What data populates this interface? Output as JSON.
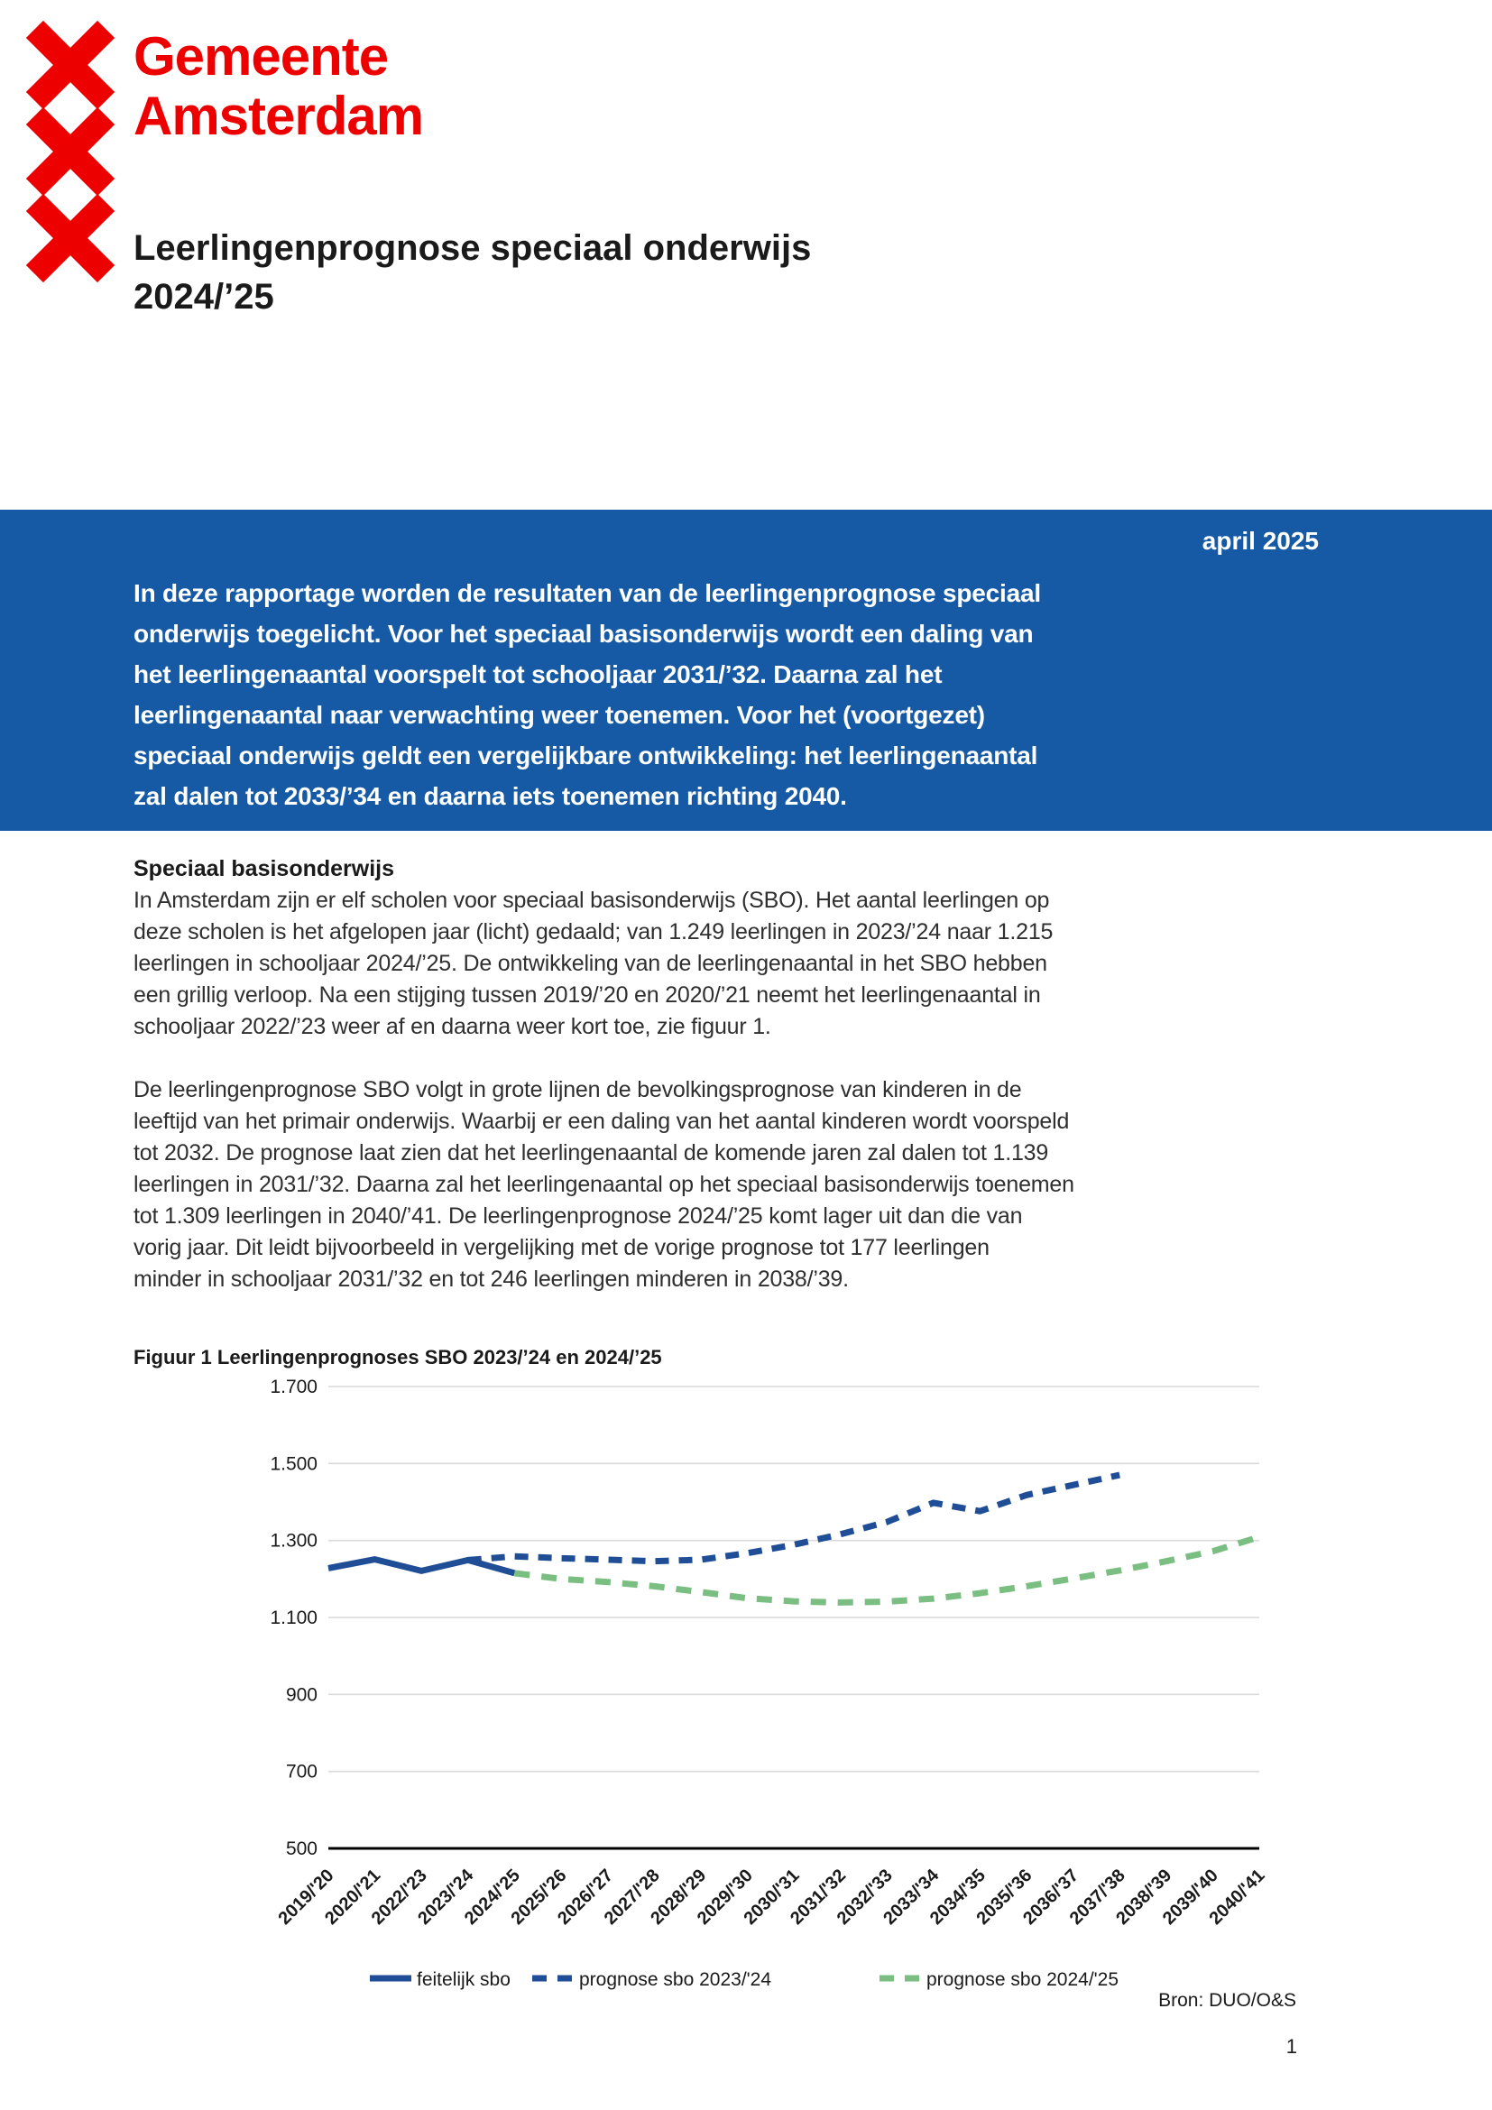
{
  "colors": {
    "red": "#ec0000",
    "blue_banner": "#1659a5",
    "chart_blue": "#1f4e96",
    "chart_green": "#7abe82",
    "grid": "#d9d9d9"
  },
  "logo": {
    "org_name": "Gemeente\nAmsterdam"
  },
  "title": "Leerlingenprognose speciaal onderwijs\n2024/’25",
  "banner": {
    "date": "april 2025",
    "text": "In deze rapportage worden de resultaten van de leerlingenprognose speciaal\nonderwijs toegelicht. Voor het speciaal basisonderwijs wordt een daling van\nhet leerlingenaantal voorspelt tot schooljaar 2031/’32. Daarna zal het\nleerlingenaantal naar verwachting weer toenemen. Voor het (voortgezet)\nspeciaal onderwijs geldt een vergelijkbare ontwikkeling: het leerlingenaantal\nzal dalen tot 2033/’34 en daarna iets toenemen richting 2040."
  },
  "section": {
    "heading": "Speciaal basisonderwijs",
    "paragraph1": "In Amsterdam zijn er elf scholen voor speciaal basisonderwijs (SBO). Het aantal leerlingen op\ndeze scholen is het afgelopen jaar (licht) gedaald; van 1.249 leerlingen in 2023/’24 naar 1.215\nleerlingen in schooljaar 2024/’25. De ontwikkeling van de leerlingenaantal in het SBO hebben\neen grillig verloop. Na een stijging tussen 2019/’20 en 2020/’21 neemt het leerlingenaantal in\nschooljaar 2022/’23 weer af en daarna weer kort toe, zie figuur 1.",
    "paragraph2": "De leerlingenprognose SBO volgt in grote lijnen de bevolkingsprognose van kinderen in de\nleeftijd van het primair onderwijs. Waarbij er een daling van het aantal kinderen wordt voorspeld\ntot 2032. De prognose laat zien dat het leerlingenaantal de komende jaren zal dalen tot 1.139\nleerlingen in 2031/’32. Daarna zal het leerlingenaantal op het speciaal basisonderwijs toenemen\ntot 1.309 leerlingen in 2040/’41. De leerlingenprognose 2024/’25 komt lager uit dan die van\nvorig jaar. Dit leidt bijvoorbeeld in vergelijking met de vorige prognose tot 177 leerlingen\nminder in schooljaar 2031/’32 en tot 246 leerlingen minderen in 2038/’39."
  },
  "figure": {
    "caption": "Figuur 1 Leerlingenprognoses SBO 2023/’24 en 2024/’25",
    "source": "Bron: DUO/O&S"
  },
  "page_number": "1",
  "chart_data": {
    "type": "line",
    "title": "Figuur 1 Leerlingenprognoses SBO 2023/'24 en 2024/'25",
    "categories": [
      "2019/'20",
      "2020/'21",
      "2022/'23",
      "2023/'24",
      "2024/'25",
      "2025/'26",
      "2026/'27",
      "2027/'28",
      "2028/'29",
      "2029/'30",
      "2030/'31",
      "2031/'32",
      "2032/'33",
      "2033/'34",
      "2034/'35",
      "2035/'36",
      "2036/'37",
      "2037/'38",
      "2038/'39",
      "2039/'40",
      "2040/'41"
    ],
    "ylim": [
      500,
      1700
    ],
    "yticks": [
      "1.700",
      "1.500",
      "1.300",
      "1.100",
      "900",
      "700",
      "500"
    ],
    "grid": true,
    "legend_position": "bottom",
    "source": "Bron: DUO/O&S",
    "series": [
      {
        "name": "feitelijk sbo",
        "color": "#1f4e96",
        "style": "solid",
        "values": [
          1228,
          1251,
          1221,
          1249,
          1215,
          null,
          null,
          null,
          null,
          null,
          null,
          null,
          null,
          null,
          null,
          null,
          null,
          null,
          null,
          null,
          null
        ]
      },
      {
        "name": "prognose sbo 2023/'24",
        "color": "#1f4e96",
        "style": "dashed",
        "values": [
          null,
          null,
          null,
          1249,
          1259,
          1254,
          1250,
          1246,
          1250,
          1267,
          1289,
          1316,
          1348,
          1398,
          1376,
          1418,
          1444,
          1470,
          null,
          null,
          null
        ]
      },
      {
        "name": "prognose sbo 2024/'25",
        "color": "#7abe82",
        "style": "dashed",
        "values": [
          null,
          null,
          null,
          null,
          1215,
          1200,
          1192,
          1181,
          1166,
          1150,
          1142,
          1139,
          1141,
          1149,
          1163,
          1181,
          1201,
          1222,
          1246,
          1272,
          1309
        ]
      }
    ]
  }
}
